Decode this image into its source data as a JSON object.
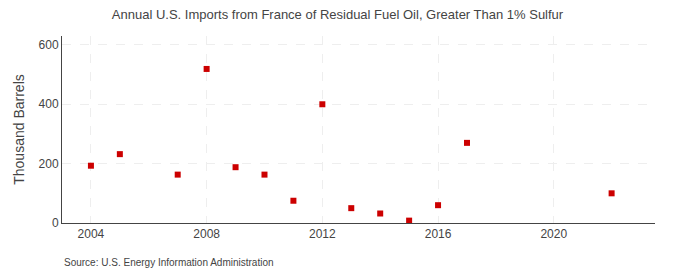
{
  "chart_data": {
    "type": "scatter",
    "title": "Annual U.S. Imports from France of Residual Fuel Oil, Greater Than 1% Sulfur",
    "ylabel": "Thousand Barrels",
    "annotations": [
      "Source: U.S. Energy Information Administration"
    ],
    "x": [
      2004,
      2005,
      2007,
      2008,
      2009,
      2010,
      2011,
      2012,
      2013,
      2014,
      2015,
      2016,
      2017,
      2022
    ],
    "values": [
      193,
      232,
      163,
      519,
      188,
      163,
      75,
      400,
      50,
      32,
      8,
      60,
      270,
      100
    ],
    "color": "#cc0000",
    "marker": "square",
    "xlim": [
      2003.0,
      2023.5
    ],
    "ylim": [
      0,
      630
    ],
    "xticks": [
      2004,
      2008,
      2012,
      2016,
      2020
    ],
    "yticks": [
      0,
      200,
      400,
      600
    ],
    "grid": true
  }
}
